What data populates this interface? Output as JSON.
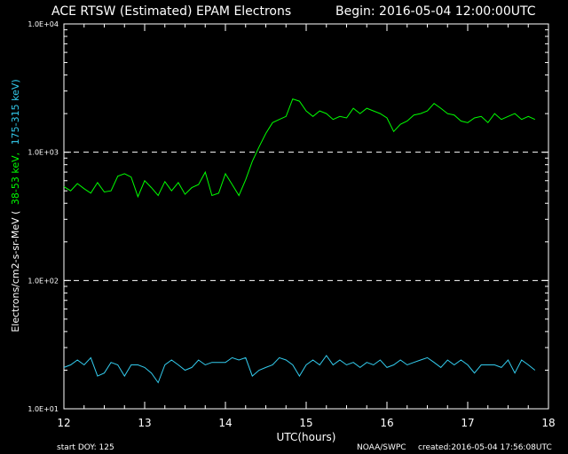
{
  "chart_data": {
    "type": "line",
    "title": "ACE RTSW (Estimated) EPAM Electrons",
    "begin_label": "Begin: 2016-05-04 12:00:00UTC",
    "xlabel": "UTC(hours)",
    "ylabel": {
      "prefix": "Electrons/cm2-s-sr-MeV  (",
      "series1": "38-53 keV,",
      "series2": "175-315 keV)"
    },
    "xlim": [
      12,
      18
    ],
    "ylim": [
      10,
      10000
    ],
    "yscale": "log",
    "x_ticks": [
      12,
      13,
      14,
      15,
      16,
      17,
      18
    ],
    "x_tick_labels": [
      "12",
      "13",
      "14",
      "15",
      "16",
      "17",
      "18"
    ],
    "y_ticks": [
      10,
      100,
      1000,
      10000
    ],
    "y_tick_labels": [
      "1.0E+01",
      "1.0E+02",
      "1.0E+03",
      "1.0E+04"
    ],
    "dashed_reference_lines": [
      100,
      1000
    ],
    "footer": {
      "start_doy": "start DOY:  125",
      "source": "NOAA/SWPC",
      "created": "created:2016-05-04 17:56:08UTC"
    },
    "series": [
      {
        "color": "#00ff00",
        "x": [
          12.0,
          12.083,
          12.167,
          12.25,
          12.333,
          12.417,
          12.5,
          12.583,
          12.667,
          12.75,
          12.833,
          12.917,
          13.0,
          13.083,
          13.167,
          13.25,
          13.333,
          13.417,
          13.5,
          13.583,
          13.667,
          13.75,
          13.833,
          13.917,
          14.0,
          14.083,
          14.167,
          14.25,
          14.333,
          14.417,
          14.5,
          14.583,
          14.667,
          14.75,
          14.833,
          14.917,
          15.0,
          15.083,
          15.167,
          15.25,
          15.333,
          15.417,
          15.5,
          15.583,
          15.667,
          15.75,
          15.833,
          15.917,
          16.0,
          16.083,
          16.167,
          16.25,
          16.333,
          16.417,
          16.5,
          16.583,
          16.667,
          16.75,
          16.833,
          16.917,
          17.0,
          17.083,
          17.167,
          17.25,
          17.333,
          17.417,
          17.5,
          17.583,
          17.667,
          17.75,
          17.833
        ],
        "values": [
          540,
          500,
          570,
          520,
          480,
          580,
          490,
          500,
          650,
          680,
          640,
          450,
          600,
          530,
          460,
          590,
          500,
          580,
          470,
          530,
          560,
          700,
          460,
          480,
          680,
          560,
          460,
          610,
          850,
          1100,
          1400,
          1700,
          1800,
          1900,
          2600,
          2500,
          2100,
          1900,
          2100,
          2000,
          1800,
          1900,
          1850,
          2200,
          2000,
          2200,
          2100,
          2000,
          1850,
          1450,
          1650,
          1750,
          1950,
          2000,
          2100,
          2400,
          2200,
          2000,
          1950,
          1750,
          1700,
          1850,
          1900,
          1700,
          2000,
          1800,
          1900,
          2000,
          1800,
          1900,
          1800
        ]
      },
      {
        "color": "#33ccee",
        "x": [
          12.0,
          12.083,
          12.167,
          12.25,
          12.333,
          12.417,
          12.5,
          12.583,
          12.667,
          12.75,
          12.833,
          12.917,
          13.0,
          13.083,
          13.167,
          13.25,
          13.333,
          13.417,
          13.5,
          13.583,
          13.667,
          13.75,
          13.833,
          13.917,
          14.0,
          14.083,
          14.167,
          14.25,
          14.333,
          14.417,
          14.5,
          14.583,
          14.667,
          14.75,
          14.833,
          14.917,
          15.0,
          15.083,
          15.167,
          15.25,
          15.333,
          15.417,
          15.5,
          15.583,
          15.667,
          15.75,
          15.833,
          15.917,
          16.0,
          16.083,
          16.167,
          16.25,
          16.333,
          16.417,
          16.5,
          16.583,
          16.667,
          16.75,
          16.833,
          16.917,
          17.0,
          17.083,
          17.167,
          17.25,
          17.333,
          17.417,
          17.5,
          17.583,
          17.667,
          17.75,
          17.833
        ],
        "values": [
          21,
          22,
          24,
          22,
          25,
          18,
          19,
          23,
          22,
          18,
          22,
          22,
          21,
          19,
          16,
          22,
          24,
          22,
          20,
          21,
          24,
          22,
          23,
          23,
          23,
          25,
          24,
          25,
          18,
          20,
          21,
          22,
          25,
          24,
          22,
          18,
          22,
          24,
          22,
          26,
          22,
          24,
          22,
          23,
          21,
          23,
          22,
          24,
          21,
          22,
          24,
          22,
          23,
          24,
          25,
          23,
          21,
          24,
          22,
          24,
          22,
          19,
          22,
          22,
          22,
          21,
          24,
          19,
          24,
          22,
          20
        ]
      }
    ]
  }
}
